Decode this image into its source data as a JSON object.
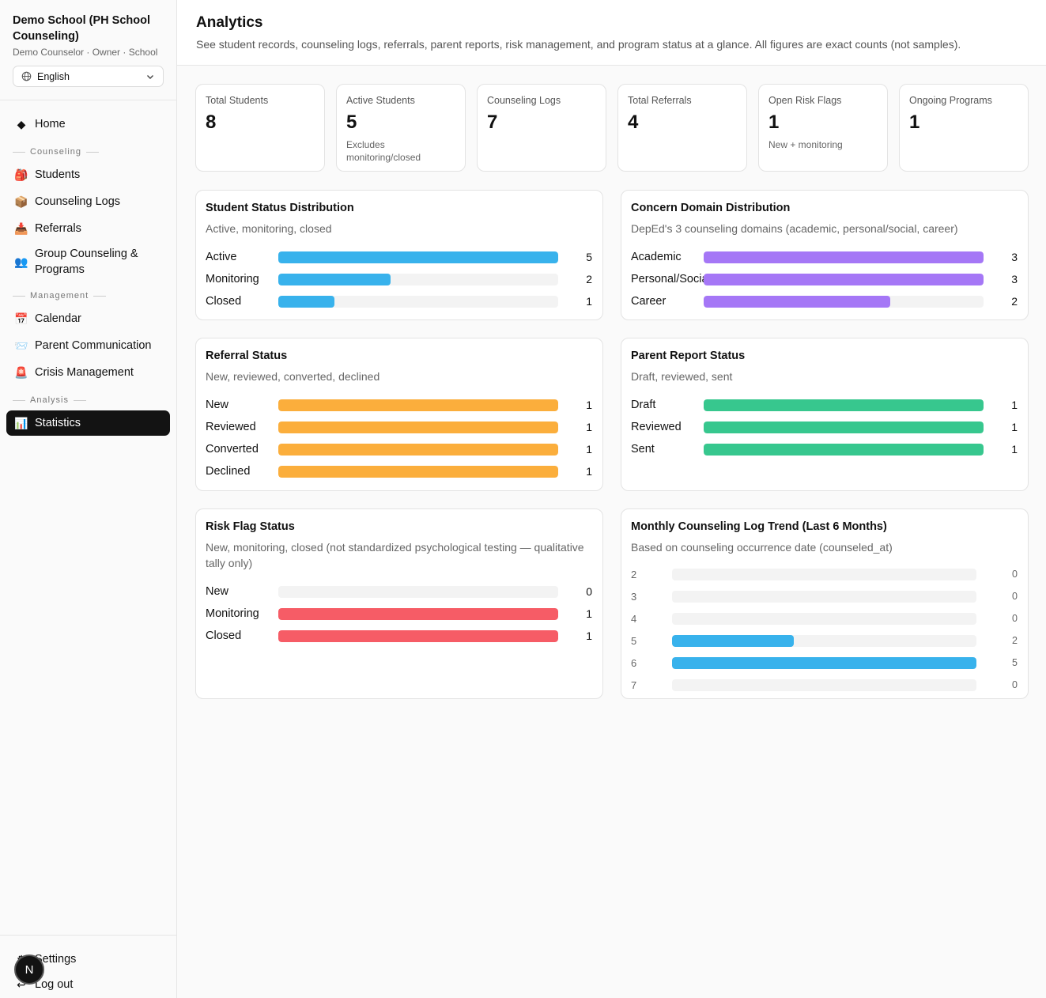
{
  "sidebar": {
    "school_name": "Demo School (PH School Counseling)",
    "school_sub": "Demo Counselor · Owner · School",
    "language": "English",
    "home": {
      "label": "Home",
      "icon": "diamond-icon"
    },
    "sections": [
      {
        "label": "Counseling",
        "items": [
          {
            "label": "Students",
            "icon": "backpack-icon",
            "glyph": "🎒"
          },
          {
            "label": "Counseling Logs",
            "icon": "box-icon",
            "glyph": "📦"
          },
          {
            "label": "Referrals",
            "icon": "inbox-icon",
            "glyph": "📥"
          },
          {
            "label": "Group Counseling & Programs",
            "icon": "people-icon",
            "glyph": "👥"
          }
        ]
      },
      {
        "label": "Management",
        "items": [
          {
            "label": "Calendar",
            "icon": "calendar-icon",
            "glyph": "📅"
          },
          {
            "label": "Parent Communication",
            "icon": "envelope-icon",
            "glyph": "📨"
          },
          {
            "label": "Crisis Management",
            "icon": "siren-icon",
            "glyph": "🚨"
          }
        ]
      },
      {
        "label": "Analysis",
        "items": [
          {
            "label": "Statistics",
            "icon": "bar-chart-icon",
            "glyph": "📊"
          }
        ]
      }
    ],
    "settings": "Settings",
    "logout": "Log out",
    "badge": "N"
  },
  "header": {
    "title": "Analytics",
    "description": "See student records, counseling logs, referrals, parent reports, risk management, and program status at a glance. All figures are exact counts (not samples)."
  },
  "stats": [
    {
      "label": "Total Students",
      "value": "8",
      "note": ""
    },
    {
      "label": "Active Students",
      "value": "5",
      "note": "Excludes monitoring/closed"
    },
    {
      "label": "Counseling Logs",
      "value": "7",
      "note": ""
    },
    {
      "label": "Total Referrals",
      "value": "4",
      "note": ""
    },
    {
      "label": "Open Risk Flags",
      "value": "1",
      "note": "New + monitoring"
    },
    {
      "label": "Ongoing Programs",
      "value": "1",
      "note": ""
    }
  ],
  "colors": {
    "blue": "#38b2ec",
    "purple": "#a577f6",
    "orange": "#fbae3c",
    "green": "#37c78e",
    "red": "#f65c66"
  },
  "chart_data": [
    {
      "type": "bar",
      "title": "Student Status Distribution",
      "subtitle": "Active, monitoring, closed",
      "categories": [
        "Active",
        "Monitoring",
        "Closed"
      ],
      "values": [
        5,
        2,
        1
      ],
      "color": "#38b2ec"
    },
    {
      "type": "bar",
      "title": "Concern Domain Distribution",
      "subtitle": "DepEd's 3 counseling domains (academic, personal/social, career)",
      "categories": [
        "Academic",
        "Personal/Social",
        "Career"
      ],
      "values": [
        3,
        3,
        2
      ],
      "color": "#a577f6"
    },
    {
      "type": "bar",
      "title": "Referral Status",
      "subtitle": "New, reviewed, converted, declined",
      "categories": [
        "New",
        "Reviewed",
        "Converted",
        "Declined"
      ],
      "values": [
        1,
        1,
        1,
        1
      ],
      "color": "#fbae3c"
    },
    {
      "type": "bar",
      "title": "Parent Report Status",
      "subtitle": "Draft, reviewed, sent",
      "categories": [
        "Draft",
        "Reviewed",
        "Sent"
      ],
      "values": [
        1,
        1,
        1
      ],
      "color": "#37c78e"
    },
    {
      "type": "bar",
      "title": "Risk Flag Status",
      "subtitle": "New, monitoring, closed (not standardized psychological testing — qualitative tally only)",
      "categories": [
        "New",
        "Monitoring",
        "Closed"
      ],
      "values": [
        0,
        1,
        1
      ],
      "color": "#f65c66"
    },
    {
      "type": "bar",
      "title": "Monthly Counseling Log Trend (Last 6 Months)",
      "subtitle": "Based on counseling occurrence date (counseled_at)",
      "categories": [
        "2",
        "3",
        "4",
        "5",
        "6",
        "7"
      ],
      "values": [
        0,
        0,
        0,
        2,
        5,
        0
      ],
      "color": "#38b2ec"
    }
  ]
}
